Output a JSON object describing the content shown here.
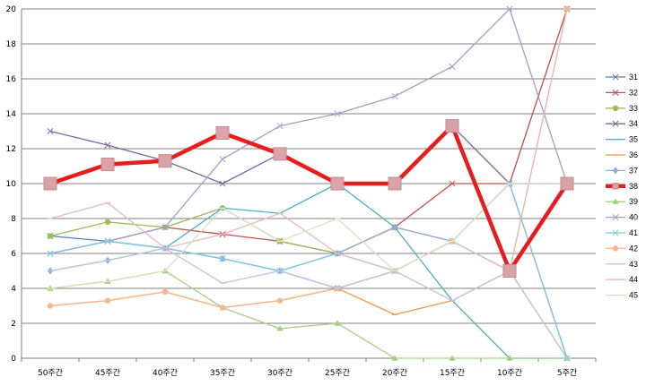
{
  "chart_data": {
    "type": "line",
    "categories": [
      "50주간",
      "45주간",
      "40주간",
      "35주간",
      "30주간",
      "25주간",
      "20주간",
      "15주간",
      "10주간",
      "5주간"
    ],
    "ylim": [
      0,
      20
    ],
    "yticks": [
      0,
      2,
      4,
      6,
      8,
      10,
      12,
      14,
      16,
      18,
      20
    ],
    "grid": true,
    "legend_position": "right",
    "highlight_series": "38",
    "series": [
      {
        "name": "31",
        "color": "#5a7fb8",
        "marker": "x",
        "values": [
          7,
          6.7,
          6.3,
          5.7,
          5,
          4,
          5,
          6.7,
          10,
          0
        ]
      },
      {
        "name": "32",
        "color": "#c0504d",
        "marker": "x",
        "values": [
          6,
          6.7,
          7.5,
          7.1,
          6.7,
          6,
          7.5,
          10,
          10,
          20
        ]
      },
      {
        "name": "33",
        "color": "#9bbb59",
        "marker": "circle",
        "values": [
          7,
          7.8,
          7.5,
          8.6,
          6.7,
          6,
          7.5,
          6.7,
          5,
          10
        ]
      },
      {
        "name": "34",
        "color": "#8064a2",
        "marker": "x",
        "values": [
          13,
          12.2,
          11.3,
          10,
          11.7,
          10,
          10,
          13.3,
          10,
          10
        ]
      },
      {
        "name": "35",
        "color": "#4bacc6",
        "marker": "dash",
        "values": [
          6,
          6.7,
          6.3,
          8.6,
          8.3,
          10,
          7.5,
          3.3,
          0,
          0
        ]
      },
      {
        "name": "36",
        "color": "#f79646",
        "marker": "dash",
        "values": [
          3,
          3.3,
          3.8,
          2.9,
          3.3,
          4,
          2.5,
          3.3,
          5,
          0
        ]
      },
      {
        "name": "37",
        "color": "#8faadc",
        "marker": "diamond",
        "values": [
          5,
          5.6,
          6.3,
          5.7,
          5,
          6,
          7.5,
          6.7,
          10,
          10
        ]
      },
      {
        "name": "38",
        "color": "#e81c1c",
        "marker": "square",
        "values": [
          10,
          11.1,
          11.3,
          12.9,
          11.7,
          10,
          10,
          13.3,
          5,
          10
        ]
      },
      {
        "name": "39",
        "color": "#a5d07e",
        "marker": "triangle",
        "values": [
          4,
          4.4,
          5,
          2.9,
          1.7,
          2,
          0,
          0,
          0,
          0
        ]
      },
      {
        "name": "40",
        "color": "#a99bc8",
        "marker": "x",
        "values": [
          6,
          6.7,
          7.5,
          11.4,
          13.3,
          14,
          15,
          16.7,
          20,
          10
        ]
      },
      {
        "name": "41",
        "color": "#7ec8e3",
        "marker": "x",
        "values": [
          6,
          6.7,
          6.3,
          5.7,
          5,
          6,
          5,
          6.7,
          10,
          0
        ]
      },
      {
        "name": "42",
        "color": "#fab58a",
        "marker": "circle",
        "values": [
          3,
          3.3,
          3.8,
          2.9,
          3.3,
          4,
          5,
          6.7,
          5,
          20
        ]
      },
      {
        "name": "43",
        "color": "#b9c7e6",
        "marker": "dash",
        "values": [
          5,
          5.6,
          6.3,
          4.3,
          5,
          4,
          5,
          3.3,
          5,
          0
        ]
      },
      {
        "name": "44",
        "color": "#e6b9b8",
        "marker": "dash",
        "values": [
          8,
          8.9,
          6.3,
          7.1,
          8.3,
          6,
          5,
          6.7,
          5,
          20
        ]
      },
      {
        "name": "45",
        "color": "#d7e4bd",
        "marker": "dash",
        "values": [
          4,
          4.4,
          5,
          8.6,
          6.7,
          8,
          5,
          6.7,
          10,
          10
        ]
      }
    ]
  }
}
